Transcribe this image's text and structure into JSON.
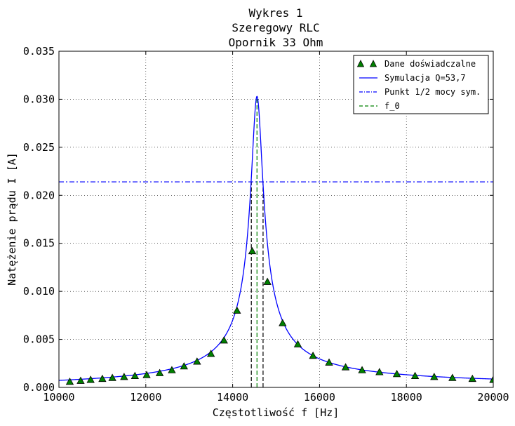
{
  "chart_data": {
    "type": "line",
    "title": [
      "Wykres 1",
      "Szeregowy RLC",
      "Opornik 33 Ohm"
    ],
    "xlabel": "Częstotliwość f [Hz]",
    "ylabel": "Natężenie prądu I [A]",
    "xlim": [
      10000,
      20000
    ],
    "ylim": [
      0.0,
      0.035
    ],
    "xticks": [
      10000,
      12000,
      14000,
      16000,
      18000,
      20000
    ],
    "yticks": [
      0.0,
      0.005,
      0.01,
      0.015,
      0.02,
      0.025,
      0.03,
      0.035
    ],
    "xtick_labels": [
      "10000",
      "12000",
      "14000",
      "16000",
      "18000",
      "20000"
    ],
    "ytick_labels": [
      "0.000",
      "0.005",
      "0.010",
      "0.015",
      "0.020",
      "0.025",
      "0.030",
      "0.035"
    ],
    "grid": true,
    "legend_position": "top-right",
    "legend": [
      {
        "label": "Dane doświadczalne",
        "style": "marker-triangle",
        "color": "#008000"
      },
      {
        "label": "Symulacja Q=53,7",
        "style": "solid",
        "color": "#0000ff"
      },
      {
        "label": "Punkt 1/2 mocy sym.",
        "style": "dashdot",
        "color": "#0000ff"
      },
      {
        "label": "f_0",
        "style": "dashed",
        "color": "#008000"
      }
    ],
    "series": [
      {
        "name": "Dane doświadczalne",
        "kind": "scatter",
        "color": "#008000",
        "x": [
          10250,
          10500,
          10730,
          11000,
          11230,
          11500,
          11750,
          12020,
          12320,
          12600,
          12880,
          13180,
          13500,
          13800,
          14100,
          14450,
          14800,
          15150,
          15500,
          15850,
          16220,
          16600,
          16980,
          17380,
          17780,
          18200,
          18640,
          19060,
          19520,
          20000
        ],
        "y": [
          0.0006,
          0.0007,
          0.0008,
          0.0009,
          0.001,
          0.0011,
          0.0012,
          0.0013,
          0.0015,
          0.0018,
          0.0022,
          0.0027,
          0.0035,
          0.0049,
          0.008,
          0.0142,
          0.011,
          0.0067,
          0.0045,
          0.0033,
          0.0026,
          0.0021,
          0.0018,
          0.0016,
          0.0014,
          0.0012,
          0.0011,
          0.001,
          0.0009,
          0.0008
        ]
      },
      {
        "name": "Symulacja Q=53,7",
        "kind": "resonance-curve",
        "color": "#0000ff",
        "peak": 0.0303,
        "f0": 14560,
        "q": 53.7
      },
      {
        "name": "Punkt 1/2 mocy sym.",
        "kind": "hline",
        "color": "#0000ff",
        "y": 0.0214
      },
      {
        "name": "f_0",
        "kind": "vline",
        "color": "#008000",
        "x": 14560,
        "y_top": 0.0303
      }
    ],
    "half_power_bounds": {
      "color": "#000000",
      "x": [
        14430,
        14700
      ],
      "y_top": 0.0214
    }
  }
}
